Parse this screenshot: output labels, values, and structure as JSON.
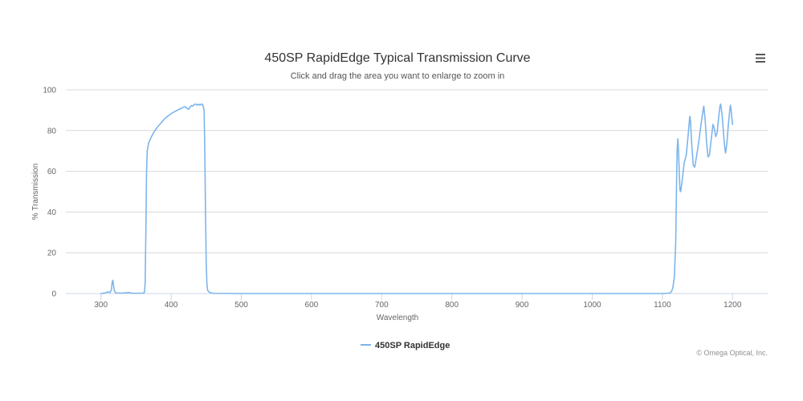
{
  "chart_data": {
    "type": "line",
    "title": "450SP RapidEdge Typical Transmission Curve",
    "subtitle": "Click and drag the area you want to enlarge to zoom in",
    "xlabel": "Wavelength",
    "ylabel": "% Transmission",
    "xlim": [
      250,
      1250
    ],
    "ylim": [
      0,
      100
    ],
    "x_ticks": [
      300,
      400,
      500,
      600,
      700,
      800,
      900,
      1000,
      1100,
      1200
    ],
    "y_ticks": [
      0,
      20,
      40,
      60,
      80,
      100
    ],
    "grid": true,
    "legend_position": "bottom-center",
    "series": [
      {
        "name": "450SP RapidEdge",
        "color": "#7cb5ec",
        "points": [
          [
            300,
            0
          ],
          [
            306,
            0.3
          ],
          [
            310,
            0.8
          ],
          [
            313,
            0.5
          ],
          [
            315,
            2
          ],
          [
            316,
            5.5
          ],
          [
            317,
            6.5
          ],
          [
            318,
            4
          ],
          [
            319,
            1.5
          ],
          [
            321,
            0.3
          ],
          [
            330,
            0.2
          ],
          [
            340,
            0.5
          ],
          [
            345,
            0.1
          ],
          [
            360,
            0.2
          ],
          [
            362,
            0.5
          ],
          [
            363,
            5
          ],
          [
            364,
            30
          ],
          [
            365,
            60
          ],
          [
            366,
            70
          ],
          [
            368,
            74
          ],
          [
            372,
            77
          ],
          [
            376,
            79.5
          ],
          [
            380,
            81.5
          ],
          [
            385,
            83.5
          ],
          [
            390,
            85.5
          ],
          [
            395,
            87
          ],
          [
            400,
            88.3
          ],
          [
            405,
            89.3
          ],
          [
            410,
            90.2
          ],
          [
            415,
            91
          ],
          [
            419,
            91.7
          ],
          [
            421,
            91.5
          ],
          [
            423,
            90.8
          ],
          [
            425,
            90.5
          ],
          [
            427,
            91.5
          ],
          [
            429,
            92.3
          ],
          [
            431,
            92
          ],
          [
            433,
            92.8
          ],
          [
            435,
            93
          ],
          [
            437,
            92.5
          ],
          [
            439,
            93
          ],
          [
            441,
            92.4
          ],
          [
            443,
            93
          ],
          [
            445,
            92.8
          ],
          [
            447,
            90
          ],
          [
            448,
            70
          ],
          [
            449,
            40
          ],
          [
            450,
            15
          ],
          [
            451,
            5
          ],
          [
            452,
            1.5
          ],
          [
            455,
            0.5
          ],
          [
            460,
            0.1
          ],
          [
            500,
            0
          ],
          [
            600,
            0
          ],
          [
            700,
            0
          ],
          [
            800,
            0
          ],
          [
            900,
            0
          ],
          [
            1000,
            0
          ],
          [
            1100,
            0
          ],
          [
            1110,
            0.2
          ],
          [
            1113,
            1
          ],
          [
            1115,
            3
          ],
          [
            1117,
            8
          ],
          [
            1119,
            25
          ],
          [
            1120,
            50
          ],
          [
            1121,
            70
          ],
          [
            1122,
            76
          ],
          [
            1123,
            70
          ],
          [
            1124,
            60
          ],
          [
            1125,
            51
          ],
          [
            1126,
            50
          ],
          [
            1128,
            55
          ],
          [
            1131,
            64
          ],
          [
            1134,
            68
          ],
          [
            1137,
            79
          ],
          [
            1139,
            87
          ],
          [
            1140,
            85
          ],
          [
            1142,
            72
          ],
          [
            1144,
            63
          ],
          [
            1146,
            62
          ],
          [
            1149,
            68
          ],
          [
            1152,
            75
          ],
          [
            1155,
            83
          ],
          [
            1158,
            90
          ],
          [
            1159,
            92
          ],
          [
            1161,
            85
          ],
          [
            1163,
            74
          ],
          [
            1165,
            67
          ],
          [
            1167,
            68
          ],
          [
            1170,
            77
          ],
          [
            1172,
            83
          ],
          [
            1174,
            81
          ],
          [
            1176,
            77
          ],
          [
            1178,
            79
          ],
          [
            1180,
            86
          ],
          [
            1182,
            92
          ],
          [
            1183,
            93
          ],
          [
            1185,
            88
          ],
          [
            1187,
            79
          ],
          [
            1189,
            71
          ],
          [
            1190,
            69
          ],
          [
            1192,
            74
          ],
          [
            1194,
            83
          ],
          [
            1196,
            90
          ],
          [
            1197,
            92.5
          ],
          [
            1198,
            90
          ],
          [
            1199,
            86
          ],
          [
            1200,
            83
          ]
        ]
      }
    ]
  },
  "credit": "© Omega Optical, Inc.",
  "menu_icon": "hamburger-menu-icon"
}
